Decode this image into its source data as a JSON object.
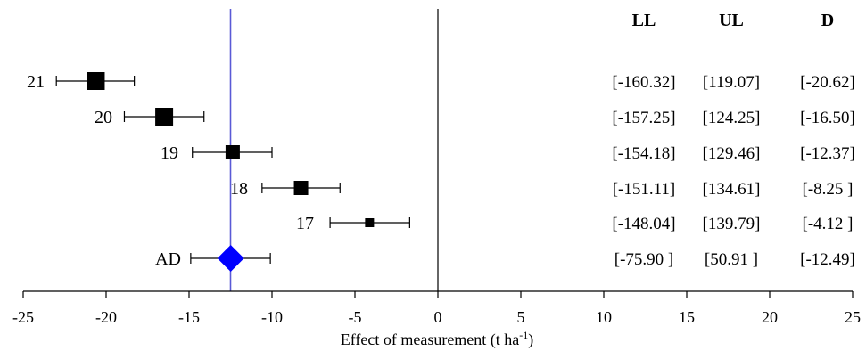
{
  "chart_data": {
    "type": "forest",
    "xlabel": "Effect of measurement (t ha",
    "xlabel_sup": "-1",
    "xlabel_close": ")",
    "xlim": [
      -25,
      25
    ],
    "xticks": [
      "-25",
      "-20",
      "-15",
      "-10",
      "-5",
      "0",
      "5",
      "10",
      "15",
      "20",
      "25"
    ],
    "xtick_values": [
      -25,
      -20,
      -15,
      -10,
      -5,
      0,
      5,
      10,
      15,
      20,
      25
    ],
    "reference_line_x": -12.5,
    "reference_line_color": "#5a5ad6",
    "zero_line_x": 0,
    "rows": [
      {
        "label": "21",
        "estimate": -20.62,
        "ci_low": -23.0,
        "ci_high": -18.3,
        "size": "large",
        "LL": "[-160.32]",
        "UL": "[119.07]",
        "D": "[-20.62]"
      },
      {
        "label": "20",
        "estimate": -16.5,
        "ci_low": -18.9,
        "ci_high": -14.1,
        "size": "large",
        "LL": "[-157.25]",
        "UL": "[124.25]",
        "D": "[-16.50]"
      },
      {
        "label": "19",
        "estimate": -12.37,
        "ci_low": -14.8,
        "ci_high": -10.0,
        "size": "medium",
        "LL": "[-154.18]",
        "UL": "[129.46]",
        "D": "[-12.37]"
      },
      {
        "label": "18",
        "estimate": -8.25,
        "ci_low": -10.6,
        "ci_high": -5.9,
        "size": "medium",
        "LL": "[-151.11]",
        "UL": "[134.61]",
        "D": "[-8.25 ]"
      },
      {
        "label": "17",
        "estimate": -4.12,
        "ci_low": -6.5,
        "ci_high": -1.7,
        "size": "small",
        "LL": "[-148.04]",
        "UL": "[139.79]",
        "D": "[-4.12 ]"
      }
    ],
    "overall": {
      "label": "AD",
      "estimate": -12.49,
      "ci_low": -14.9,
      "ci_high": -10.1,
      "marker": "diamond",
      "color": "#0000ff",
      "LL": "[-75.90 ]",
      "UL": "[50.91 ]",
      "D": "[-12.49]"
    },
    "table_headers": [
      "LL",
      "UL",
      "D"
    ]
  }
}
